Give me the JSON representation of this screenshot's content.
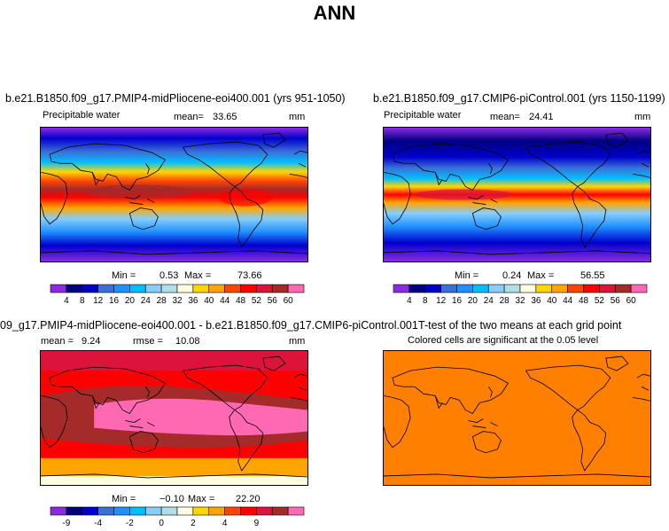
{
  "title": "ANN",
  "colors": {
    "scale": [
      "#8a2be2",
      "#000080",
      "#0000cd",
      "#3a6fd8",
      "#1e90ff",
      "#00bfff",
      "#87cefa",
      "#b0e0e6",
      "#ffffe0",
      "#ffd700",
      "#ffa500",
      "#ff4500",
      "#ff0000",
      "#dc143c",
      "#a52a2a",
      "#ff69b4"
    ],
    "significant": "#ff7f00"
  },
  "panels": {
    "test": {
      "title": "b.e21.B1850.f09_g17.PMIP4-midPliocene-eoi400.001 (yrs 951-1050)",
      "variable": "Precipitable water",
      "mean_label": "mean=",
      "mean_value": "33.65",
      "units": "mm",
      "min_label": "Min =",
      "min_value": "0.53",
      "max_label": "Max =",
      "max_value": "73.66",
      "colorbar_labels": [
        "4",
        "8",
        "12",
        "16",
        "20",
        "24",
        "28",
        "32",
        "36",
        "40",
        "44",
        "48",
        "52",
        "56",
        "60"
      ]
    },
    "control": {
      "title": "b.e21.B1850.f09_g17.CMIP6-piControl.001 (yrs 1150-1199)",
      "variable": "Precipitable water",
      "mean_label": "mean=",
      "mean_value": "24.41",
      "units": "mm",
      "min_label": "Min =",
      "min_value": "0.24",
      "max_label": "Max =",
      "max_value": "56.55",
      "colorbar_labels": [
        "4",
        "8",
        "12",
        "16",
        "20",
        "24",
        "28",
        "32",
        "36",
        "40",
        "44",
        "48",
        "52",
        "56",
        "60"
      ]
    },
    "diff": {
      "title": "09_g17.PMIP4-midPliocene-eoi400.001 - b.e21.B1850.f09_g17.CMIP6-piControl.001",
      "mean_label": "mean =",
      "mean_value": "9.24",
      "rmse_label": "rmse =",
      "rmse_value": "10.08",
      "units": "mm",
      "min_label": "Min =",
      "min_value": "−0.10",
      "max_label": "Max =",
      "max_value": "22.20",
      "colorbar_labels": [
        "-9",
        "-4",
        "-2",
        "0",
        "2",
        "4",
        "9"
      ]
    },
    "ttest": {
      "title": "T-test of the two means at each grid point",
      "subtitle": "Colored cells are significant at the 0.05 level"
    }
  }
}
